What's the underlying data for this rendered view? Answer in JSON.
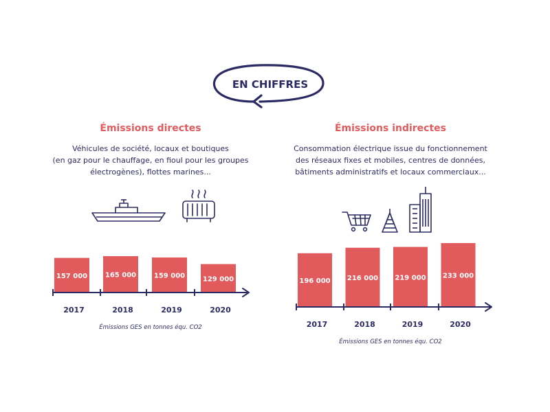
{
  "header": {
    "title": "EN CHIFFRES"
  },
  "colors": {
    "bar": "#e15b5d",
    "navy": "#2b2a63",
    "heading": "#e15b5d"
  },
  "panels": [
    {
      "heading": "Émissions directes",
      "description": [
        "Véhicules de société, locaux et boutiques",
        "(en gaz pour le chauffage, en fioul pour les groupes",
        "électrogènes), flottes marines..."
      ],
      "icons": [
        "ship-icon",
        "radiator-icon"
      ],
      "note": "Émissions GES en tonnes équ. CO2"
    },
    {
      "heading": "Émissions indirectes",
      "description": [
        "Consommation électrique issue du fonctionnement",
        "des réseaux fixes et mobiles, centres de données,",
        "bâtiments administratifs et locaux commerciaux..."
      ],
      "icons": [
        "shopping-cart-icon",
        "antenna-tower-icon",
        "skyscraper-icon"
      ],
      "note": "Émissions GES en tonnes équ. CO2"
    }
  ],
  "chart_data": [
    {
      "type": "bar",
      "title": "Émissions directes",
      "categories": [
        "2017",
        "2018",
        "2019",
        "2020"
      ],
      "values": [
        157000,
        165000,
        159000,
        129000
      ],
      "value_labels": [
        "157 000",
        "165 000",
        "159 000",
        "129 000"
      ],
      "ylim": [
        0,
        165000
      ],
      "grid": false,
      "legend": "none"
    },
    {
      "type": "bar",
      "title": "Émissions indirectes",
      "categories": [
        "2017",
        "2018",
        "2019",
        "2020"
      ],
      "values": [
        196000,
        216000,
        219000,
        233000
      ],
      "value_labels": [
        "196 000",
        "216 000",
        "219 000",
        "233 000"
      ],
      "ylim": [
        0,
        233000
      ],
      "grid": false,
      "legend": "none"
    }
  ]
}
